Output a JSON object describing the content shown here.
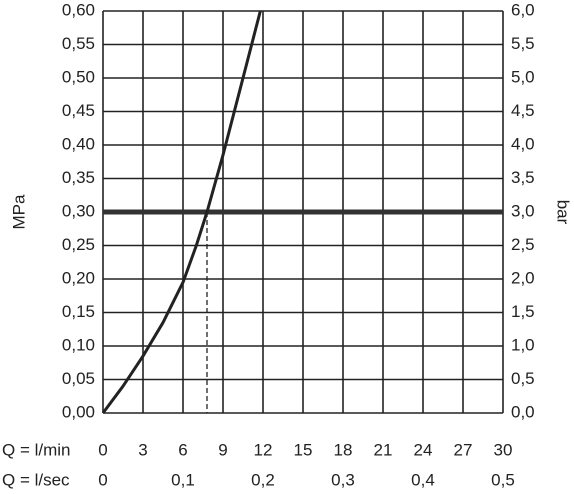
{
  "chart_data": {
    "type": "line",
    "x": [
      0,
      1.5,
      3,
      4.5,
      6,
      7,
      7.8,
      9,
      10.5,
      11.8
    ],
    "series": [
      {
        "color": "#222222",
        "values": [
          0,
          0.04,
          0.085,
          0.135,
          0.195,
          0.25,
          0.3,
          0.385,
          0.5,
          0.6
        ]
      }
    ],
    "xlabel": "Q = l/min",
    "x2label": "Q = l/sec",
    "ylabel": "MPa",
    "y2label": "bar",
    "xlim": [
      0,
      30
    ],
    "xticks": [
      0,
      3,
      6,
      9,
      12,
      15,
      18,
      21,
      24,
      27,
      30
    ],
    "x2lim": [
      0,
      0.5
    ],
    "x2ticks": [
      0,
      {
        "value": 0.1,
        "label": "0,1"
      },
      {
        "value": 0.2,
        "label": "0,2"
      },
      {
        "value": 0.3,
        "label": "0,3"
      },
      {
        "value": 0.4,
        "label": "0,4"
      },
      {
        "value": 0.5,
        "label": "0,5"
      }
    ],
    "ylim": [
      0,
      0.6
    ],
    "yticks": [
      {
        "value": 0,
        "label": "0,00"
      },
      {
        "value": 0.05,
        "label": "0,05"
      },
      {
        "value": 0.1,
        "label": "0,10"
      },
      {
        "value": 0.15,
        "label": "0,15"
      },
      {
        "value": 0.2,
        "label": "0,20"
      },
      {
        "value": 0.25,
        "label": "0,25"
      },
      {
        "value": 0.3,
        "label": "0,30"
      },
      {
        "value": 0.35,
        "label": "0,35"
      },
      {
        "value": 0.4,
        "label": "0,40"
      },
      {
        "value": 0.45,
        "label": "0,45"
      },
      {
        "value": 0.5,
        "label": "0,50"
      },
      {
        "value": 0.55,
        "label": "0,55"
      },
      {
        "value": 0.6,
        "label": "0,60"
      }
    ],
    "y2lim": [
      0,
      6
    ],
    "y2ticks": [
      {
        "value": 0,
        "label": "0,0"
      },
      {
        "value": 0.5,
        "label": "0,5"
      },
      {
        "value": 1,
        "label": "1,0"
      },
      {
        "value": 1.5,
        "label": "1,5"
      },
      {
        "value": 2,
        "label": "2,0"
      },
      {
        "value": 2.5,
        "label": "2,5"
      },
      {
        "value": 3,
        "label": "3,0"
      },
      {
        "value": 3.5,
        "label": "3,5"
      },
      {
        "value": 4,
        "label": "4,0"
      },
      {
        "value": 4.5,
        "label": "4,5"
      },
      {
        "value": 5,
        "label": "5,0"
      },
      {
        "value": 5.5,
        "label": "5,5"
      },
      {
        "value": 6,
        "label": "6,0"
      }
    ],
    "marker": {
      "x": 7.8,
      "y": 0.3
    },
    "grid": true
  }
}
